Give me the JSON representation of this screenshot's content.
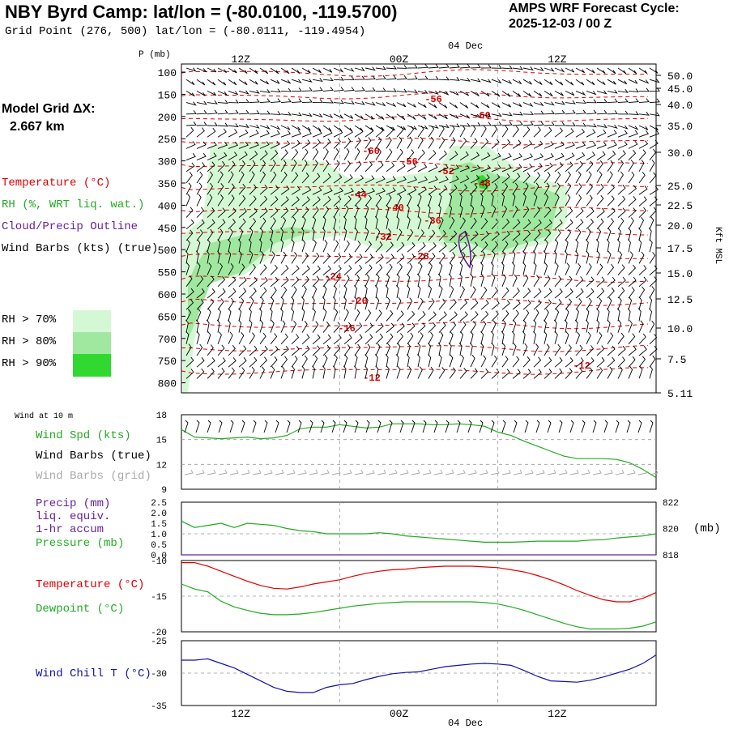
{
  "header": {
    "title": "NBY Byrd Camp:  lat/lon = (-80.0100, -119.5700)",
    "subtitle": "Grid Point (276, 500) lat/lon = (-80.0111, -119.4954)",
    "cycle_label": "AMPS WRF Forecast Cycle:",
    "cycle_value": "2025-12-03 / 00  Z"
  },
  "model": {
    "grid_label": "Model Grid ΔX:",
    "grid_value": "2.667 km"
  },
  "legend": {
    "temperature": "Temperature (°C)",
    "rh": "RH (%, WRT liq. wat.)",
    "cloud": "Cloud/Precip Outline",
    "barbs": "Wind Barbs (kts) (true)",
    "rh_keys": [
      {
        "label": "RH > 70%",
        "color": "#d4f8d4"
      },
      {
        "label": "RH > 80%",
        "color": "#a0e8a0"
      },
      {
        "label": "RH > 90%",
        "color": "#30d830"
      }
    ],
    "wind10": "Wind at 10 m",
    "windspd": "Wind Spd (kts)",
    "windbarbs_true": "Wind Barbs (true)",
    "windbarbs_grid": "Wind Barbs (grid)",
    "precip": "Precip (mm)",
    "precip2": "liq. equiv.",
    "precip3": "1-hr accum",
    "pressure": "Pressure (mb)",
    "temp2": "Temperature (°C)",
    "dewpoint": "Dewpoint (°C)",
    "windchill": "Wind Chill T (°C)"
  },
  "colors": {
    "temperature": "#dd0000",
    "rh": "#22aa22",
    "cloud": "#662299",
    "grid_barb": "#aaaaaa",
    "windchill": "#1111aa",
    "grid": "#999999"
  },
  "chart_data": [
    {
      "id": "cross-section",
      "type": "contour",
      "x_axis": {
        "top_labels": [
          "12Z",
          "00Z",
          "12Z"
        ],
        "top_date": "04 Dec",
        "range_hours": [
          0,
          36
        ]
      },
      "y_left": {
        "label": "P (mb)",
        "ticks": [
          "100",
          "150",
          "200",
          "250",
          "300",
          "350",
          "400",
          "450",
          "500",
          "550",
          "600",
          "650",
          "700",
          "750",
          "800"
        ]
      },
      "y_right": {
        "label": "Kft MSL",
        "ticks": [
          "50.0",
          "45.0",
          "40.0",
          "35.0",
          "30.0",
          "25.0",
          "22.5",
          "20.0",
          "17.5",
          "15.0",
          "12.5",
          "10.0",
          "7.5",
          "5.11"
        ]
      },
      "temperature_labels": [
        "-56",
        "-60",
        "-60",
        "-56",
        "-52",
        "-48",
        "-44",
        "-40",
        "-36",
        "-32",
        "-28",
        "-24",
        "-20",
        "-16",
        "-12",
        "-12"
      ]
    },
    {
      "id": "wind-panel",
      "type": "line",
      "y_ticks": [
        "18",
        "15",
        "12",
        "9"
      ],
      "ylim": [
        9,
        18
      ],
      "x_hours": [
        0,
        1,
        2,
        3,
        4,
        5,
        6,
        7,
        8,
        9,
        10,
        11,
        12,
        13,
        14,
        15,
        16,
        17,
        18,
        19,
        20,
        21,
        22,
        23,
        24,
        25,
        26,
        27,
        28,
        29,
        30,
        31,
        32,
        33,
        34,
        35,
        36
      ],
      "wind_speed_kts": [
        16.2,
        15.3,
        15.2,
        15.1,
        15.2,
        15.3,
        15.1,
        15.2,
        15.5,
        16.3,
        16.5,
        16.5,
        16.8,
        16.6,
        16.4,
        16.5,
        16.9,
        16.9,
        16.9,
        16.8,
        16.8,
        16.9,
        16.8,
        16.6,
        15.9,
        15.5,
        14.8,
        14.2,
        13.6,
        13.0,
        12.7,
        12.7,
        12.7,
        12.6,
        12.2,
        11.4,
        10.4
      ]
    },
    {
      "id": "precip-pressure-panel",
      "type": "line",
      "y_left_ticks": [
        "2.5",
        "2.0",
        "1.5",
        "1.0",
        "0.5",
        "0.0"
      ],
      "y_right_ticks": [
        "822",
        "820",
        "818"
      ],
      "y_right_unit": "(mb)",
      "pressure_scaled": [
        1.6,
        1.3,
        1.4,
        1.5,
        1.3,
        1.5,
        1.45,
        1.4,
        1.25,
        1.15,
        1.1,
        1.0,
        1.0,
        1.0,
        1.0,
        1.05,
        1.0,
        0.9,
        0.85,
        0.8,
        0.75,
        0.7,
        0.65,
        0.6,
        0.6,
        0.6,
        0.62,
        0.65,
        0.65,
        0.65,
        0.65,
        0.7,
        0.72,
        0.8,
        0.85,
        0.9,
        1.0
      ],
      "precip_mm": [
        0,
        0,
        0,
        0,
        0,
        0,
        0,
        0,
        0,
        0,
        0,
        0,
        0,
        0,
        0,
        0,
        0,
        0,
        0,
        0,
        0,
        0,
        0,
        0,
        0,
        0,
        0,
        0,
        0,
        0,
        0,
        0,
        0,
        0,
        0,
        0,
        0
      ]
    },
    {
      "id": "temp-dew-panel",
      "type": "line",
      "y_ticks": [
        "-10",
        "-15",
        "-20"
      ],
      "ylim": [
        -20,
        -10
      ],
      "temperature": [
        -10.3,
        -10.3,
        -10.8,
        -11.5,
        -12.2,
        -12.9,
        -13.5,
        -13.9,
        -14.0,
        -13.7,
        -13.3,
        -13.0,
        -12.7,
        -12.2,
        -11.8,
        -11.5,
        -11.3,
        -11.2,
        -11.0,
        -10.9,
        -10.8,
        -10.8,
        -10.8,
        -10.9,
        -11.0,
        -11.3,
        -11.6,
        -12.1,
        -12.7,
        -13.4,
        -14.2,
        -14.9,
        -15.5,
        -15.8,
        -15.8,
        -15.3,
        -14.5
      ],
      "dewpoint": [
        -13.3,
        -14.0,
        -14.4,
        -15.7,
        -16.5,
        -17.0,
        -17.4,
        -17.6,
        -17.6,
        -17.5,
        -17.3,
        -17.0,
        -16.7,
        -16.4,
        -16.2,
        -16.0,
        -15.9,
        -15.8,
        -15.8,
        -15.8,
        -15.8,
        -15.8,
        -15.8,
        -15.9,
        -16.1,
        -16.5,
        -17.0,
        -17.6,
        -18.2,
        -18.8,
        -19.3,
        -19.6,
        -19.6,
        -19.6,
        -19.5,
        -19.2,
        -18.6
      ]
    },
    {
      "id": "windchill-panel",
      "type": "line",
      "y_ticks": [
        "-25",
        "-30",
        "-35"
      ],
      "ylim": [
        -35,
        -25
      ],
      "windchill": [
        -28.0,
        -28.0,
        -27.8,
        -28.5,
        -29.2,
        -30.2,
        -31.2,
        -32.2,
        -32.8,
        -33.0,
        -33.0,
        -32.2,
        -31.8,
        -31.6,
        -31.0,
        -30.5,
        -30.1,
        -29.9,
        -29.8,
        -29.4,
        -29.0,
        -28.8,
        -28.6,
        -28.5,
        -28.6,
        -28.8,
        -29.6,
        -30.5,
        -31.2,
        -31.3,
        -31.4,
        -31.1,
        -30.6,
        -30.0,
        -29.4,
        -28.5,
        -27.2
      ]
    }
  ],
  "bottom_axis": {
    "labels": [
      "12Z",
      "00Z",
      "12Z"
    ],
    "date": "04 Dec"
  }
}
